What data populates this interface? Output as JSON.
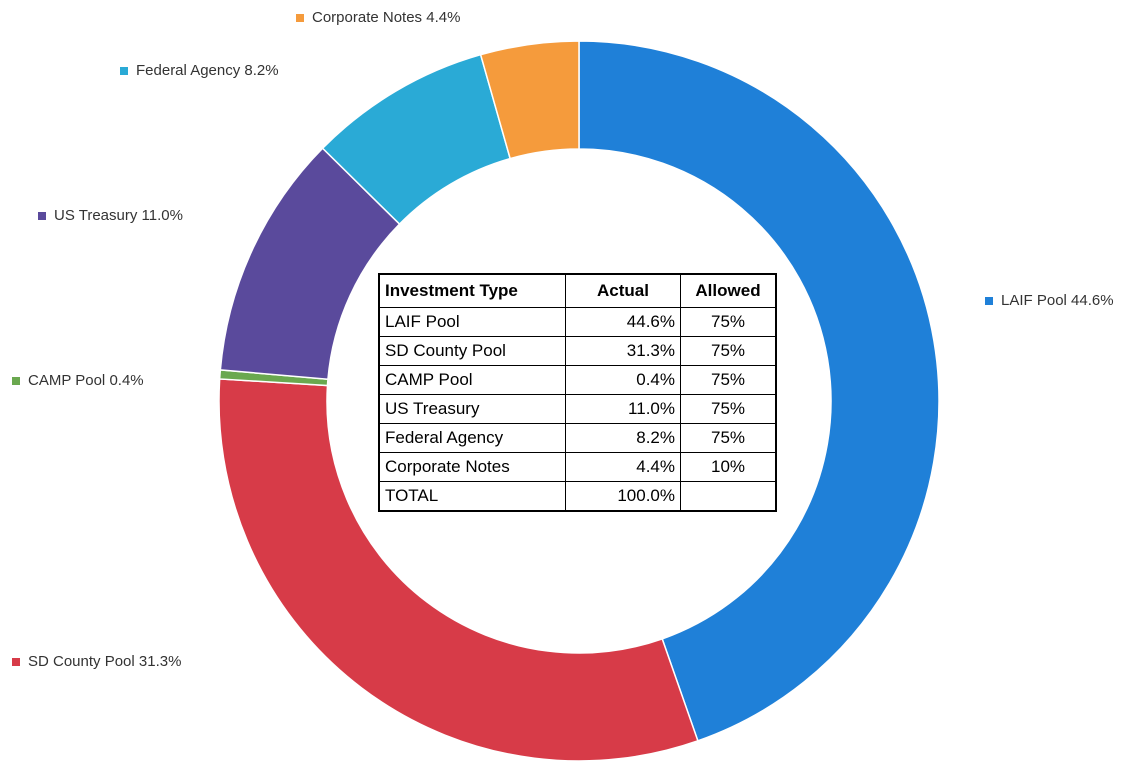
{
  "chart_data": {
    "type": "donut",
    "categories": [
      "LAIF Pool",
      "SD County Pool",
      "CAMP Pool",
      "US Treasury",
      "Federal Agency",
      "Corporate Notes"
    ],
    "values": [
      44.6,
      31.3,
      0.4,
      11.0,
      8.2,
      4.4
    ],
    "value_labels": [
      "44.6%",
      "31.3%",
      "0.4%",
      "11.0%",
      "8.2%",
      "4.4%"
    ],
    "colors": [
      "#1f80d8",
      "#d73b48",
      "#6aa84f",
      "#5a4a9c",
      "#2aaad6",
      "#f59b3c"
    ]
  },
  "table": {
    "header": [
      "Investment Type",
      "Actual",
      "Allowed"
    ],
    "rows": [
      [
        "LAIF Pool",
        "44.6%",
        "75%"
      ],
      [
        "SD County Pool",
        "31.3%",
        "75%"
      ],
      [
        "CAMP Pool",
        "0.4%",
        "75%"
      ],
      [
        "US Treasury",
        "11.0%",
        "75%"
      ],
      [
        "Federal Agency",
        "8.2%",
        "75%"
      ],
      [
        "Corporate Notes",
        "4.4%",
        "10%"
      ],
      [
        "TOTAL",
        "100.0%",
        null
      ]
    ]
  }
}
